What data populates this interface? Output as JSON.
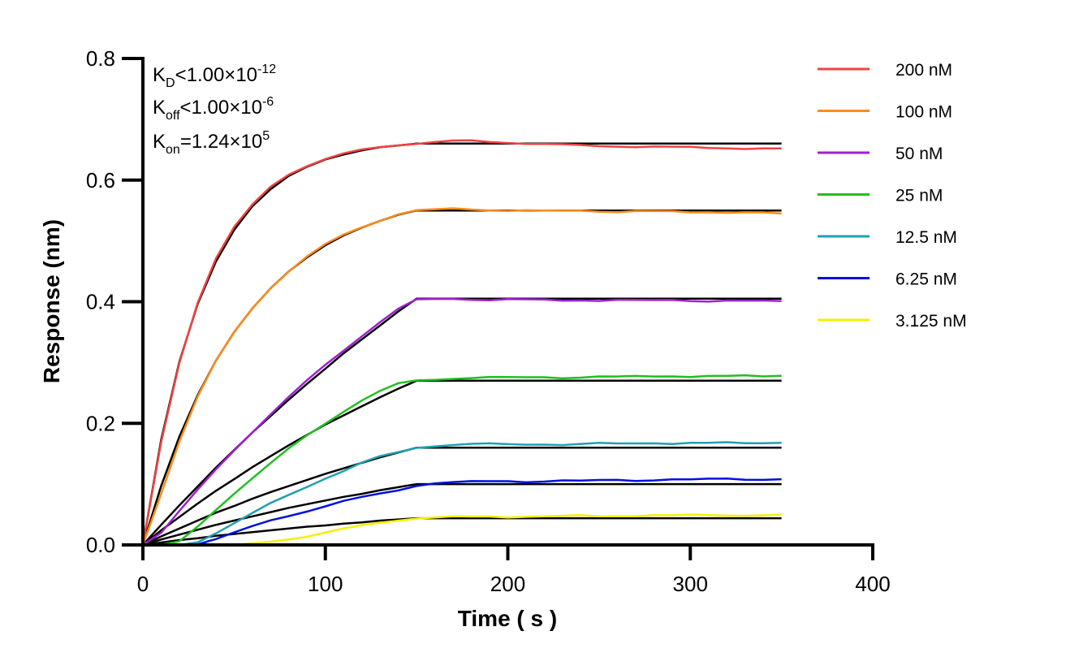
{
  "chart_data": {
    "type": "line",
    "xlabel": "Time ( s )",
    "ylabel": "Response (nm)",
    "xlim": [
      0,
      400
    ],
    "ylim": [
      0,
      0.8
    ],
    "xticks": [
      "0",
      "100",
      "200",
      "300",
      "400"
    ],
    "yticks": [
      "0.0",
      "0.2",
      "0.4",
      "0.6",
      "0.8"
    ],
    "grid": false,
    "legend_position": "top-right",
    "annotations": [
      {
        "main": "K",
        "sub": "D",
        "rel": "<1.00×10",
        "sup": "-12"
      },
      {
        "main": "K",
        "sub": "off",
        "rel": "<1.00×10",
        "sup": "-6"
      },
      {
        "main": "K",
        "sub": "on",
        "rel": "=1.24×10",
        "sup": "5"
      }
    ],
    "fit_color": "#000000",
    "x": [
      0,
      10,
      20,
      30,
      40,
      50,
      60,
      70,
      80,
      90,
      100,
      110,
      120,
      130,
      140,
      150,
      160,
      170,
      180,
      190,
      200,
      210,
      220,
      230,
      240,
      250,
      260,
      270,
      280,
      290,
      300,
      310,
      320,
      330,
      340,
      350
    ],
    "series": [
      {
        "name": "200 nM",
        "color": "#f04343",
        "values": [
          0,
          0.17,
          0.3,
          0.398,
          0.47,
          0.522,
          0.56,
          0.59,
          0.61,
          0.623,
          0.634,
          0.643,
          0.65,
          0.655,
          0.658,
          0.66,
          0.662,
          0.664,
          0.665,
          0.663,
          0.662,
          0.66,
          0.659,
          0.658,
          0.657,
          0.656,
          0.656,
          0.655,
          0.655,
          0.654,
          0.654,
          0.653,
          0.653,
          0.652,
          0.652,
          0.652
        ],
        "fit": [
          0,
          0.173,
          0.301,
          0.396,
          0.466,
          0.518,
          0.557,
          0.585,
          0.607,
          0.622,
          0.634,
          0.642,
          0.649,
          0.654,
          0.657,
          0.66,
          0.66,
          0.66,
          0.66,
          0.66,
          0.66,
          0.66,
          0.66,
          0.66,
          0.66,
          0.66,
          0.66,
          0.66,
          0.66,
          0.66,
          0.66,
          0.66,
          0.66,
          0.66,
          0.66,
          0.66
        ]
      },
      {
        "name": "100 nM",
        "color": "#ff8c1a",
        "values": [
          0,
          0.085,
          0.17,
          0.243,
          0.302,
          0.35,
          0.39,
          0.423,
          0.45,
          0.474,
          0.494,
          0.51,
          0.523,
          0.534,
          0.544,
          0.55,
          0.551,
          0.553,
          0.552,
          0.551,
          0.55,
          0.55,
          0.549,
          0.549,
          0.55,
          0.549,
          0.548,
          0.549,
          0.548,
          0.548,
          0.547,
          0.548,
          0.547,
          0.547,
          0.546,
          0.545
        ],
        "fit": [
          0,
          0.097,
          0.178,
          0.246,
          0.303,
          0.35,
          0.389,
          0.422,
          0.45,
          0.473,
          0.493,
          0.509,
          0.522,
          0.533,
          0.543,
          0.55,
          0.55,
          0.55,
          0.55,
          0.55,
          0.55,
          0.55,
          0.55,
          0.55,
          0.55,
          0.55,
          0.55,
          0.55,
          0.55,
          0.55,
          0.55,
          0.55,
          0.55,
          0.55,
          0.55,
          0.55
        ]
      },
      {
        "name": "50 nM",
        "color": "#a020d0",
        "values": [
          0,
          0.02,
          0.055,
          0.09,
          0.124,
          0.156,
          0.186,
          0.215,
          0.243,
          0.27,
          0.296,
          0.32,
          0.344,
          0.367,
          0.388,
          0.403,
          0.404,
          0.405,
          0.404,
          0.403,
          0.404,
          0.403,
          0.403,
          0.402,
          0.403,
          0.402,
          0.403,
          0.402,
          0.402,
          0.403,
          0.402,
          0.401,
          0.402,
          0.401,
          0.401,
          0.401
        ],
        "fit": [
          0,
          0.033,
          0.065,
          0.096,
          0.127,
          0.156,
          0.185,
          0.212,
          0.239,
          0.265,
          0.29,
          0.315,
          0.338,
          0.361,
          0.384,
          0.405,
          0.405,
          0.405,
          0.405,
          0.405,
          0.405,
          0.405,
          0.405,
          0.405,
          0.405,
          0.405,
          0.405,
          0.405,
          0.405,
          0.405,
          0.405,
          0.405,
          0.405,
          0.405,
          0.405,
          0.405
        ]
      },
      {
        "name": "25 nM",
        "color": "#20c020",
        "values": [
          0,
          0,
          0.005,
          0.03,
          0.058,
          0.085,
          0.11,
          0.134,
          0.158,
          0.18,
          0.2,
          0.22,
          0.238,
          0.253,
          0.265,
          0.27,
          0.272,
          0.274,
          0.275,
          0.276,
          0.275,
          0.275,
          0.276,
          0.275,
          0.276,
          0.277,
          0.276,
          0.277,
          0.277,
          0.278,
          0.277,
          0.278,
          0.277,
          0.278,
          0.277,
          0.278
        ],
        "fit": [
          0,
          0.024,
          0.046,
          0.068,
          0.089,
          0.108,
          0.128,
          0.146,
          0.164,
          0.181,
          0.198,
          0.213,
          0.228,
          0.243,
          0.257,
          0.27,
          0.27,
          0.27,
          0.27,
          0.27,
          0.27,
          0.27,
          0.27,
          0.27,
          0.27,
          0.27,
          0.27,
          0.27,
          0.27,
          0.27,
          0.27,
          0.27,
          0.27,
          0.27,
          0.27,
          0.27
        ]
      },
      {
        "name": "12.5 nM",
        "color": "#20a0b0",
        "values": [
          0,
          0,
          0,
          0.005,
          0.02,
          0.036,
          0.052,
          0.068,
          0.082,
          0.096,
          0.11,
          0.122,
          0.135,
          0.145,
          0.152,
          0.16,
          0.163,
          0.165,
          0.166,
          0.166,
          0.165,
          0.165,
          0.166,
          0.165,
          0.166,
          0.167,
          0.166,
          0.167,
          0.168,
          0.167,
          0.168,
          0.167,
          0.168,
          0.167,
          0.168,
          0.168
        ],
        "fit": [
          0,
          0.014,
          0.027,
          0.04,
          0.053,
          0.064,
          0.076,
          0.087,
          0.097,
          0.107,
          0.117,
          0.126,
          0.135,
          0.144,
          0.152,
          0.16,
          0.16,
          0.16,
          0.16,
          0.16,
          0.16,
          0.16,
          0.16,
          0.16,
          0.16,
          0.16,
          0.16,
          0.16,
          0.16,
          0.16,
          0.16,
          0.16,
          0.16,
          0.16,
          0.16,
          0.16
        ]
      },
      {
        "name": "6.25 nM",
        "color": "#0010e0",
        "values": [
          0,
          0,
          0,
          0.002,
          0.01,
          0.02,
          0.03,
          0.04,
          0.048,
          0.056,
          0.064,
          0.072,
          0.078,
          0.084,
          0.09,
          0.098,
          0.102,
          0.103,
          0.104,
          0.104,
          0.105,
          0.104,
          0.105,
          0.106,
          0.105,
          0.106,
          0.107,
          0.106,
          0.107,
          0.108,
          0.107,
          0.108,
          0.109,
          0.108,
          0.108,
          0.108
        ],
        "fit": [
          0,
          0.009,
          0.017,
          0.025,
          0.033,
          0.04,
          0.047,
          0.054,
          0.061,
          0.067,
          0.073,
          0.079,
          0.084,
          0.09,
          0.095,
          0.1,
          0.1,
          0.1,
          0.1,
          0.1,
          0.1,
          0.1,
          0.1,
          0.1,
          0.1,
          0.1,
          0.1,
          0.1,
          0.1,
          0.1,
          0.1,
          0.1,
          0.1,
          0.1,
          0.1,
          0.1
        ]
      },
      {
        "name": "3.125 nM",
        "color": "#f5f000",
        "values": [
          0,
          0,
          0,
          0,
          0,
          0,
          0.002,
          0.006,
          0.01,
          0.014,
          0.02,
          0.026,
          0.032,
          0.037,
          0.041,
          0.044,
          0.045,
          0.046,
          0.046,
          0.047,
          0.046,
          0.047,
          0.047,
          0.047,
          0.048,
          0.047,
          0.048,
          0.048,
          0.049,
          0.048,
          0.049,
          0.049,
          0.049,
          0.049,
          0.049,
          0.05
        ],
        "fit": [
          0,
          0.004,
          0.008,
          0.011,
          0.015,
          0.018,
          0.021,
          0.024,
          0.027,
          0.03,
          0.032,
          0.035,
          0.037,
          0.04,
          0.042,
          0.044,
          0.044,
          0.044,
          0.044,
          0.044,
          0.044,
          0.044,
          0.044,
          0.044,
          0.044,
          0.044,
          0.044,
          0.044,
          0.044,
          0.044,
          0.044,
          0.044,
          0.044,
          0.044,
          0.044,
          0.044
        ]
      }
    ]
  }
}
